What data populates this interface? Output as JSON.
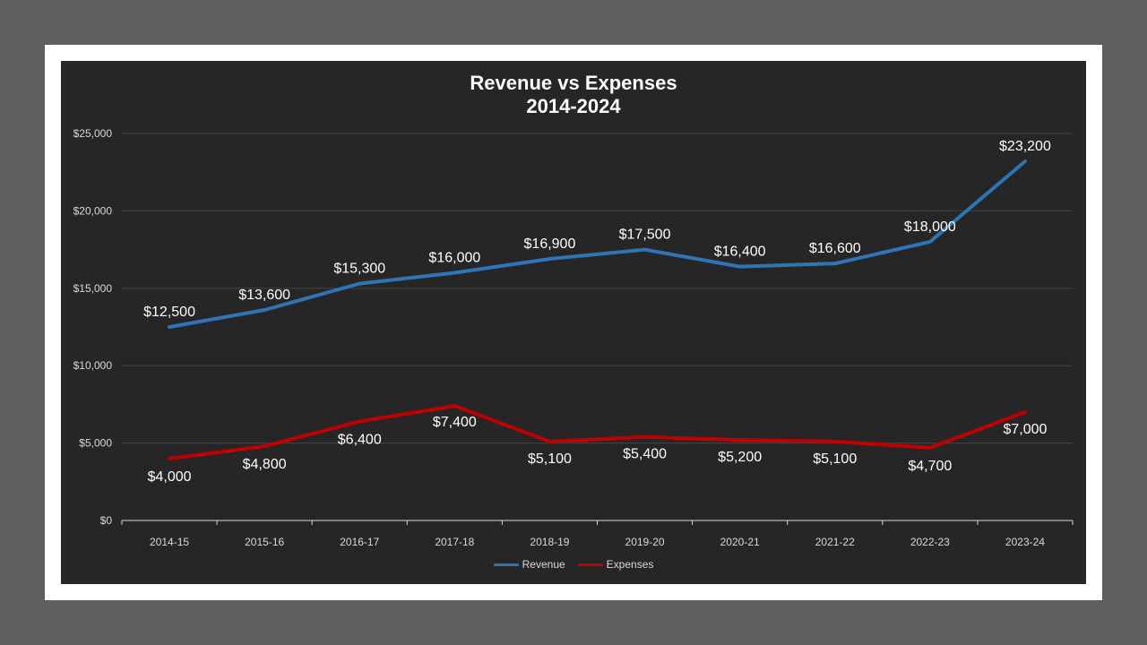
{
  "chart_data": {
    "type": "line",
    "title": "Revenue vs Expenses",
    "subtitle": "2014-2024",
    "categories": [
      "2014-15",
      "2015-16",
      "2016-17",
      "2017-18",
      "2018-19",
      "2019-20",
      "2020-21",
      "2021-22",
      "2022-23",
      "2023-24"
    ],
    "series": [
      {
        "name": "Revenue",
        "color": "#2e75b6",
        "values": [
          12500,
          13600,
          15300,
          16000,
          16900,
          17500,
          16400,
          16600,
          18000,
          23200
        ],
        "labels": [
          "$12,500",
          "$13,600",
          "$15,300",
          "$16,000",
          "$16,900",
          "$17,500",
          "$16,400",
          "$16,600",
          "$18,000",
          "$23,200"
        ]
      },
      {
        "name": "Expenses",
        "color": "#c00000",
        "values": [
          4000,
          4800,
          6400,
          7400,
          5100,
          5400,
          5200,
          5100,
          4700,
          7000
        ],
        "labels": [
          "$4,000",
          "$4,800",
          "$6,400",
          "$7,400",
          "$5,100",
          "$5,400",
          "$5,200",
          "$5,100",
          "$4,700",
          "$7,000"
        ]
      }
    ],
    "ylim": [
      0,
      25000
    ],
    "yticks": [
      0,
      5000,
      10000,
      15000,
      20000,
      25000
    ],
    "ytick_labels": [
      "$0",
      "$5,000",
      "$10,000",
      "$15,000",
      "$20,000",
      "$25,000"
    ],
    "grid": true,
    "legend_position": "bottom",
    "background": "#262626"
  }
}
